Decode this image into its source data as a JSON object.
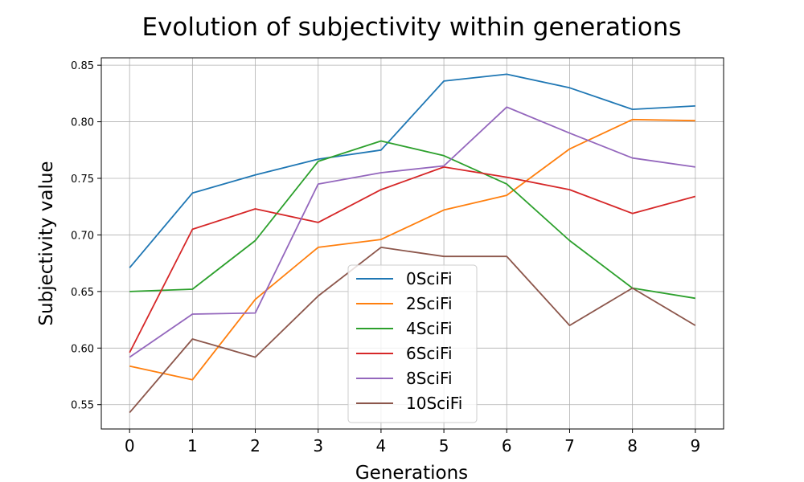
{
  "chart_data": {
    "type": "line",
    "title": "Evolution of subjectivity within generations",
    "xlabel": "Generations",
    "ylabel": "Subjectivity value",
    "x": [
      0,
      1,
      2,
      3,
      4,
      5,
      6,
      7,
      8,
      9
    ],
    "xlim": [
      -0.45,
      9.45
    ],
    "ylim": [
      0.5285,
      0.8565
    ],
    "yticks": [
      0.55,
      0.6,
      0.65,
      0.7,
      0.75,
      0.8,
      0.85
    ],
    "ytick_labels": [
      "0.55",
      "0.60",
      "0.65",
      "0.70",
      "0.75",
      "0.80",
      "0.85"
    ],
    "grid": true,
    "legend_position": "lower center",
    "series": [
      {
        "name": "0SciFi",
        "color": "#1f77b4",
        "values": [
          0.671,
          0.737,
          0.753,
          0.767,
          0.775,
          0.836,
          0.842,
          0.83,
          0.811,
          0.814
        ]
      },
      {
        "name": "2SciFi",
        "color": "#ff7f0e",
        "values": [
          0.584,
          0.572,
          0.643,
          0.689,
          0.696,
          0.722,
          0.735,
          0.776,
          0.802,
          0.801
        ]
      },
      {
        "name": "4SciFi",
        "color": "#2ca02c",
        "values": [
          0.65,
          0.652,
          0.695,
          0.765,
          0.783,
          0.77,
          0.745,
          0.695,
          0.653,
          0.644
        ]
      },
      {
        "name": "6SciFi",
        "color": "#d62728",
        "values": [
          0.596,
          0.705,
          0.723,
          0.711,
          0.74,
          0.76,
          0.751,
          0.74,
          0.719,
          0.734
        ]
      },
      {
        "name": "8SciFi",
        "color": "#9467bd",
        "values": [
          0.592,
          0.63,
          0.631,
          0.745,
          0.755,
          0.761,
          0.813,
          0.79,
          0.768,
          0.76
        ]
      },
      {
        "name": "10SciFi",
        "color": "#8c564b",
        "values": [
          0.543,
          0.608,
          0.592,
          0.646,
          0.689,
          0.681,
          0.681,
          0.62,
          0.653,
          0.62
        ]
      }
    ]
  }
}
